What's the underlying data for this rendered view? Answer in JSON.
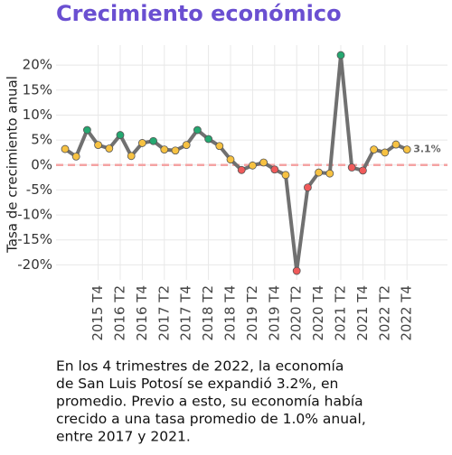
{
  "chart_data": {
    "type": "line",
    "title": "Crecimiento económico",
    "y_label": "Tasa de crecimiento anual",
    "categories": [
      null,
      null,
      null,
      "2015 T4",
      null,
      "2016 T2",
      null,
      "2016 T4",
      null,
      "2017 T2",
      null,
      "2017 T4",
      null,
      "2018 T2",
      null,
      "2018 T4",
      null,
      "2019 T2",
      null,
      "2019 T4",
      null,
      "2020 T2",
      null,
      "2020 T4",
      null,
      "2021 T2",
      null,
      "2021 T4",
      null,
      "2022 T2",
      null,
      "2022 T4"
    ],
    "values": [
      3.2,
      1.7,
      7.0,
      4.0,
      3.3,
      6.0,
      1.8,
      4.4,
      4.8,
      3.1,
      2.9,
      4.0,
      7.0,
      5.2,
      3.8,
      1.1,
      -1.0,
      -0.1,
      0.5,
      -0.9,
      -2.0,
      -21.2,
      -4.5,
      -1.5,
      -1.7,
      22.0,
      -0.5,
      -1.1,
      3.1,
      2.5,
      4.1,
      3.1
    ],
    "value_labels": [
      null,
      null,
      null,
      null,
      null,
      null,
      null,
      null,
      null,
      null,
      null,
      null,
      null,
      null,
      null,
      null,
      null,
      null,
      null,
      null,
      null,
      null,
      null,
      null,
      null,
      null,
      null,
      null,
      null,
      null,
      null,
      "3.1%"
    ],
    "point_colors": [
      "#f7c242",
      "#f7c242",
      "#25a871",
      "#f7c242",
      "#f7c242",
      "#25a871",
      "#f7c242",
      "#f7c242",
      "#25a871",
      "#f7c242",
      "#f7c242",
      "#f7c242",
      "#25a871",
      "#25a871",
      "#f7c242",
      "#f7c242",
      "#f05a5a",
      "#f7c242",
      "#f7c242",
      "#f05a5a",
      "#f7c242",
      "#f05a5a",
      "#f05a5a",
      "#f7c242",
      "#f7c242",
      "#25a871",
      "#f05a5a",
      "#f05a5a",
      "#f7c242",
      "#f7c242",
      "#f7c242",
      "#f7c242"
    ],
    "color": "#707070",
    "reference_line_color": "#f4a3a3",
    "ylim": [
      -23,
      24
    ],
    "yticks": [
      {
        "value": -20,
        "label": "-20%"
      },
      {
        "value": -15,
        "label": "-15%"
      },
      {
        "value": -10,
        "label": "-10%"
      },
      {
        "value": -5,
        "label": "-5%"
      },
      {
        "value": 0,
        "label": "0%"
      },
      {
        "value": 5,
        "label": "5%"
      },
      {
        "value": 10,
        "label": "10%"
      },
      {
        "value": 15,
        "label": "15%"
      },
      {
        "value": 20,
        "label": "20%"
      }
    ],
    "grid": true,
    "description": [
      "En los 4 trimestres de 2022, la economía",
      "de San Luis Potosí se expandió 3.2%, en",
      "promedio. Previo a esto, su economía había",
      "crecido a una tasa promedio de 1.0% anual,",
      "entre 2017 y 2021."
    ]
  }
}
